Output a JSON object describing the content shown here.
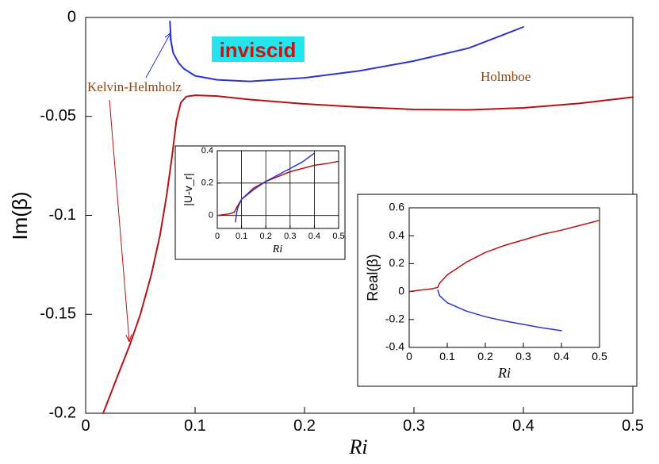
{
  "colors": {
    "red": "#b41414",
    "blue": "#2a35d0",
    "annotation_text": "#8b4513",
    "badge_bg": "#22e6ee",
    "badge_text": "#c81414"
  },
  "badge": {
    "text": "inviscid"
  },
  "annotations": [
    {
      "text": "Kelvin-Helmholz"
    },
    {
      "text": "Holmboe"
    }
  ],
  "chart_data": [
    {
      "type": "line",
      "title": "",
      "xlabel": "Ri",
      "ylabel": "Im(β)",
      "xlim": [
        0,
        0.5
      ],
      "ylim": [
        -0.2,
        0
      ],
      "xticks": [
        0,
        0.1,
        0.2,
        0.3,
        0.4,
        0.5
      ],
      "xtick_labels": [
        "0",
        "0.1",
        "0.2",
        "0.3",
        "0.4",
        "0.5"
      ],
      "yticks": [
        0,
        -0.05,
        -0.1,
        -0.15,
        -0.2
      ],
      "ytick_labels": [
        "0",
        "-0.05",
        "-0.1",
        "-0.15",
        "-0.2"
      ],
      "grid": false,
      "series": [
        {
          "color": "red",
          "points": [
            [
              0.016,
              -0.2
            ],
            [
              0.03,
              -0.18
            ],
            [
              0.04,
              -0.166
            ],
            [
              0.05,
              -0.15
            ],
            [
              0.06,
              -0.13
            ],
            [
              0.068,
              -0.11
            ],
            [
              0.074,
              -0.09
            ],
            [
              0.079,
              -0.07
            ],
            [
              0.083,
              -0.052
            ],
            [
              0.087,
              -0.043
            ],
            [
              0.092,
              -0.04
            ],
            [
              0.1,
              -0.0393
            ],
            [
              0.12,
              -0.0397
            ],
            [
              0.15,
              -0.0415
            ],
            [
              0.2,
              -0.0437
            ],
            [
              0.25,
              -0.0453
            ],
            [
              0.3,
              -0.0465
            ],
            [
              0.35,
              -0.0467
            ],
            [
              0.4,
              -0.0457
            ],
            [
              0.45,
              -0.0435
            ],
            [
              0.5,
              -0.0403
            ]
          ]
        },
        {
          "color": "blue",
          "points": [
            [
              0.077,
              -0.002
            ],
            [
              0.078,
              -0.012
            ],
            [
              0.08,
              -0.018
            ],
            [
              0.085,
              -0.023
            ],
            [
              0.09,
              -0.026
            ],
            [
              0.1,
              -0.0295
            ],
            [
              0.12,
              -0.0315
            ],
            [
              0.15,
              -0.0323
            ],
            [
              0.2,
              -0.0305
            ],
            [
              0.25,
              -0.027
            ],
            [
              0.3,
              -0.022
            ],
            [
              0.35,
              -0.0155
            ],
            [
              0.4,
              -0.0048
            ]
          ]
        }
      ]
    },
    {
      "type": "line",
      "title": "",
      "xlabel": "Ri",
      "ylabel": "|U-v_r|",
      "xlim": [
        0,
        0.5
      ],
      "ylim": [
        -0.08,
        0.4
      ],
      "xticks": [
        0,
        0.1,
        0.2,
        0.3,
        0.4,
        0.5
      ],
      "xtick_labels": [
        "0",
        "0.1",
        "0.2",
        "0.3",
        "0.4",
        "0.5"
      ],
      "yticks": [
        0,
        0.2,
        0.4
      ],
      "ytick_labels": [
        "0",
        "0.2",
        "0.4"
      ],
      "grid": true,
      "series": [
        {
          "color": "red",
          "points": [
            [
              0,
              0
            ],
            [
              0.05,
              0.01
            ],
            [
              0.07,
              0.02
            ],
            [
              0.08,
              0.05
            ],
            [
              0.1,
              0.1
            ],
            [
              0.15,
              0.17
            ],
            [
              0.2,
              0.21
            ],
            [
              0.25,
              0.24
            ],
            [
              0.3,
              0.27
            ],
            [
              0.35,
              0.29
            ],
            [
              0.4,
              0.31
            ],
            [
              0.45,
              0.32
            ],
            [
              0.5,
              0.335
            ]
          ]
        },
        {
          "color": "blue",
          "points": [
            [
              0.075,
              -0.04
            ],
            [
              0.08,
              0.02
            ],
            [
              0.085,
              0.05
            ],
            [
              0.1,
              0.1
            ],
            [
              0.15,
              0.16
            ],
            [
              0.2,
              0.21
            ],
            [
              0.25,
              0.25
            ],
            [
              0.3,
              0.29
            ],
            [
              0.35,
              0.33
            ],
            [
              0.4,
              0.385
            ]
          ]
        }
      ]
    },
    {
      "type": "line",
      "title": "",
      "xlabel": "Ri",
      "ylabel": "Real(β)",
      "xlim": [
        0,
        0.5
      ],
      "ylim": [
        -0.4,
        0.6
      ],
      "xticks": [
        0,
        0.1,
        0.2,
        0.3,
        0.4,
        0.5
      ],
      "xtick_labels": [
        "0",
        "0.1",
        "0.2",
        "0.3",
        "0.4",
        "0.5"
      ],
      "yticks": [
        0.6,
        0.4,
        0.2,
        0,
        -0.2,
        -0.4
      ],
      "ytick_labels": [
        "0.6",
        "0.4",
        "0.2",
        "0",
        "-0.2",
        "-0.4"
      ],
      "grid": false,
      "series": [
        {
          "color": "red",
          "points": [
            [
              0,
              0
            ],
            [
              0.03,
              0.01
            ],
            [
              0.06,
              0.02
            ],
            [
              0.075,
              0.03
            ],
            [
              0.08,
              0.06
            ],
            [
              0.1,
              0.12
            ],
            [
              0.15,
              0.21
            ],
            [
              0.2,
              0.28
            ],
            [
              0.25,
              0.33
            ],
            [
              0.3,
              0.37
            ],
            [
              0.35,
              0.41
            ],
            [
              0.4,
              0.44
            ],
            [
              0.45,
              0.475
            ],
            [
              0.5,
              0.51
            ]
          ]
        },
        {
          "color": "blue",
          "points": [
            [
              0.075,
              0.01
            ],
            [
              0.08,
              -0.03
            ],
            [
              0.1,
              -0.08
            ],
            [
              0.15,
              -0.14
            ],
            [
              0.2,
              -0.18
            ],
            [
              0.25,
              -0.21
            ],
            [
              0.3,
              -0.235
            ],
            [
              0.35,
              -0.26
            ],
            [
              0.4,
              -0.28
            ]
          ]
        }
      ]
    }
  ]
}
